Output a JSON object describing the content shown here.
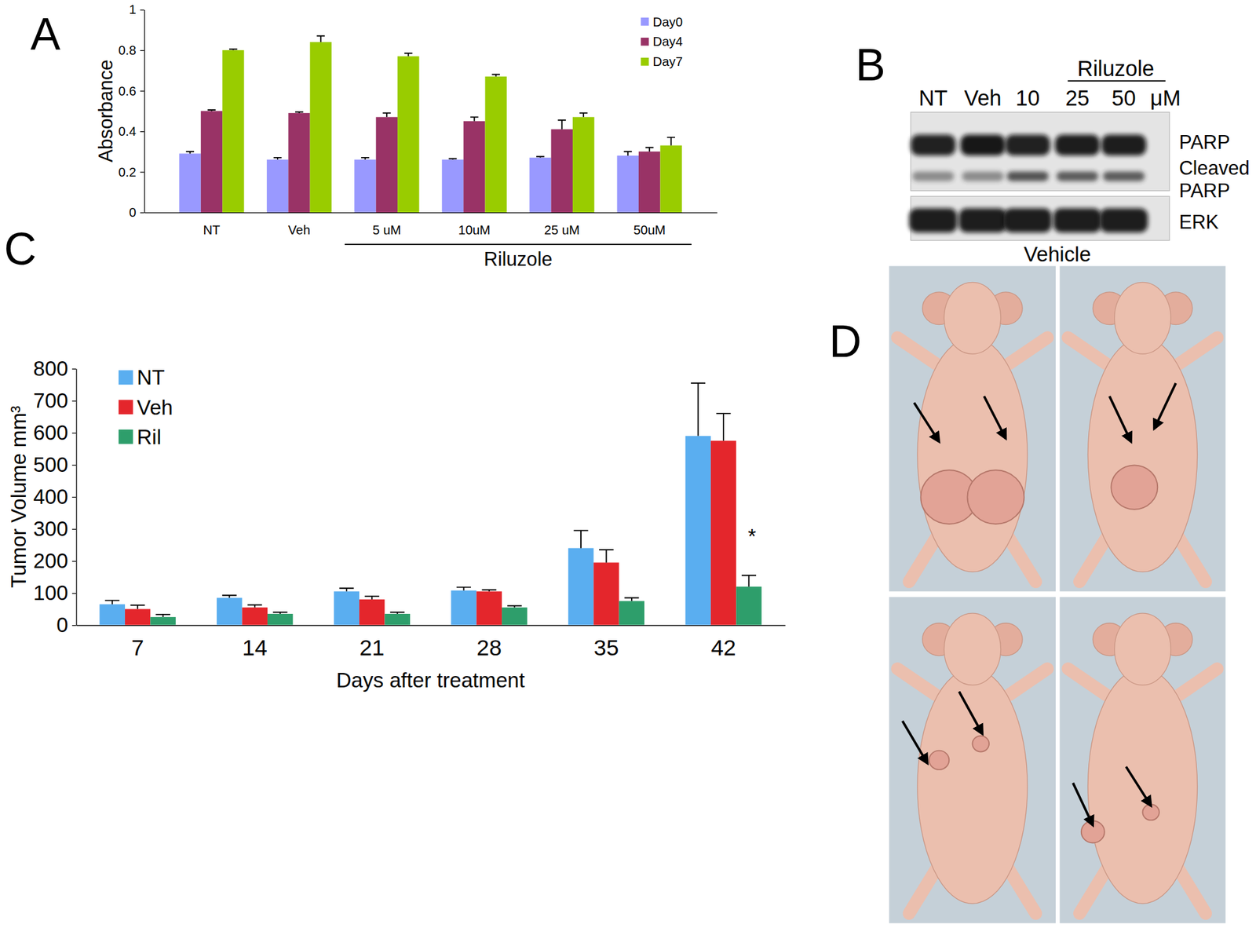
{
  "chart_data": [
    {
      "panel": "A",
      "type": "bar",
      "categories": [
        "NT",
        "Veh",
        "5 uM",
        "10uM",
        "25 uM",
        "50uM"
      ],
      "x_group_label": "Riluzole",
      "y_label": "Absorbance",
      "ylim": [
        0,
        1
      ],
      "yticks": [
        0,
        0.2,
        0.4,
        0.6,
        0.8,
        1
      ],
      "legend": "top-right",
      "series": [
        {
          "name": "Day0",
          "color": "#9999ff",
          "values": [
            0.29,
            0.26,
            0.26,
            0.26,
            0.27,
            0.28
          ],
          "errors": [
            0.01,
            0.01,
            0.01,
            0.005,
            0.005,
            0.02
          ]
        },
        {
          "name": "Day4",
          "color": "#993366",
          "values": [
            0.5,
            0.49,
            0.47,
            0.45,
            0.41,
            0.3
          ],
          "errors": [
            0.005,
            0.005,
            0.02,
            0.02,
            0.045,
            0.02
          ]
        },
        {
          "name": "Day7",
          "color": "#99cc00",
          "values": [
            0.8,
            0.84,
            0.77,
            0.67,
            0.47,
            0.33
          ],
          "errors": [
            0.005,
            0.03,
            0.015,
            0.01,
            0.02,
            0.04
          ]
        }
      ]
    },
    {
      "panel": "C",
      "type": "bar",
      "categories": [
        7,
        14,
        21,
        28,
        35,
        42
      ],
      "x_label": "Days after treatment",
      "y_label": "Tumor Volume mm³",
      "ylim": [
        0,
        800
      ],
      "yticks": [
        0,
        100,
        200,
        300,
        400,
        500,
        600,
        700,
        800
      ],
      "legend": "top-left",
      "annotation": "*",
      "series": [
        {
          "name": "NT",
          "color": "#5aaef0",
          "values": [
            65,
            85,
            105,
            108,
            240,
            590
          ],
          "errors": [
            12,
            8,
            10,
            10,
            55,
            165
          ]
        },
        {
          "name": "Veh",
          "color": "#e4262c",
          "values": [
            50,
            55,
            80,
            105,
            195,
            575
          ],
          "errors": [
            12,
            8,
            10,
            5,
            40,
            85
          ]
        },
        {
          "name": "Ril",
          "color": "#2e9e6b",
          "values": [
            25,
            35,
            35,
            55,
            75,
            120
          ],
          "errors": [
            8,
            5,
            5,
            5,
            10,
            35
          ]
        }
      ]
    }
  ],
  "blot": {
    "panel": "B",
    "lanes": [
      "NT",
      "Veh",
      "10",
      "25",
      "50"
    ],
    "unit": "μM",
    "group_label": "Riluzole",
    "bands": [
      [
        "PARP"
      ],
      [
        "Cleaved",
        "PARP"
      ],
      [
        "ERK"
      ]
    ]
  },
  "photos": {
    "panel": "D",
    "label": "Vehicle"
  }
}
